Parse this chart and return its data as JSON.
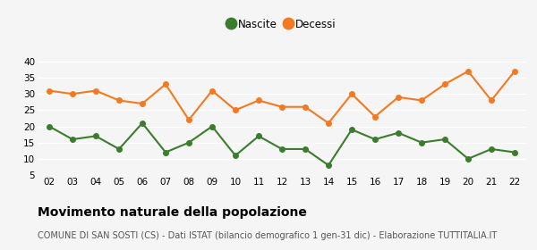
{
  "years": [
    "02",
    "03",
    "04",
    "05",
    "06",
    "07",
    "08",
    "09",
    "10",
    "11",
    "12",
    "13",
    "14",
    "15",
    "16",
    "17",
    "18",
    "19",
    "20",
    "21",
    "22"
  ],
  "nascite": [
    20,
    16,
    17,
    13,
    21,
    12,
    15,
    20,
    11,
    17,
    13,
    13,
    8,
    19,
    16,
    18,
    15,
    16,
    10,
    13,
    12
  ],
  "decessi": [
    31,
    30,
    31,
    28,
    27,
    33,
    22,
    31,
    25,
    28,
    26,
    26,
    21,
    30,
    23,
    29,
    28,
    33,
    37,
    28,
    37
  ],
  "nascite_color": "#3a7d2c",
  "decessi_color": "#f47920",
  "ylim": [
    5,
    42
  ],
  "yticks": [
    5,
    10,
    15,
    20,
    25,
    30,
    35,
    40
  ],
  "title": "Movimento naturale della popolazione",
  "subtitle": "COMUNE DI SAN SOSTI (CS) - Dati ISTAT (bilancio demografico 1 gen-31 dic) - Elaborazione TUTTITALIA.IT",
  "legend_nascite": "Nascite",
  "legend_decessi": "Decessi",
  "bg_color": "#f5f5f5",
  "grid_color": "#ffffff",
  "title_fontsize": 10,
  "subtitle_fontsize": 7,
  "tick_fontsize": 7.5,
  "legend_fontsize": 8.5,
  "linewidth": 1.5,
  "markersize": 4
}
